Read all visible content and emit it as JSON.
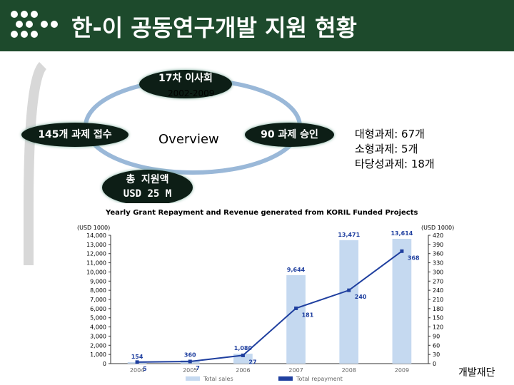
{
  "header": {
    "title": "한-이 공동연구개발 지원 현황"
  },
  "diagram": {
    "board": "17차 이사회",
    "period": "2002-2009",
    "received": "145개 과제 접수",
    "center": "Overview",
    "approved": "90 과제 승인",
    "total_label": "총 지원액",
    "total_value": "USD 25 M"
  },
  "summary": [
    "대형과제: 67개",
    "소형과제: 5개",
    "타당성과제: 18개"
  ],
  "footer": "개발재단",
  "chart_data": {
    "type": "bar_line",
    "title": "Yearly Grant Repayment and Revenue generated from KORIL Funded Projects",
    "ylabel": "(USD 1000)",
    "y2label": "(USD 1000)",
    "categories": [
      "2004",
      "2005",
      "2006",
      "2007",
      "2008",
      "2009"
    ],
    "series": [
      {
        "name": "Total sales",
        "color": "#c5d9f0",
        "type": "bar",
        "values": [
          154,
          360,
          1080,
          9644,
          13471,
          13614
        ],
        "value_labels": [
          "154",
          "360",
          "1,080",
          "9,644",
          "13,471",
          "13,614"
        ]
      },
      {
        "name": "Total repayment",
        "color": "#1f3f9f",
        "type": "line",
        "axis": "y2",
        "values": [
          5,
          7,
          27,
          181,
          240,
          368
        ]
      }
    ],
    "ylim": [
      0,
      14000
    ],
    "yticks": [
      0,
      {
        "value": 1000,
        "label": "1,000"
      },
      {
        "value": 2000,
        "label": "2,000"
      },
      {
        "value": 3000,
        "label": "3,000"
      },
      {
        "value": 4000,
        "label": "4,000"
      },
      {
        "value": 5000,
        "label": "5,000"
      },
      {
        "value": 6000,
        "label": "6,000"
      },
      {
        "value": 7000,
        "label": "7,000"
      },
      {
        "value": 8000,
        "label": "8,000"
      },
      {
        "value": 9000,
        "label": "9,000"
      },
      {
        "value": 10000,
        "label": "10,000"
      },
      {
        "value": 11000,
        "label": "11,000"
      },
      {
        "value": 12000,
        "label": "12,000"
      },
      {
        "value": 13000,
        "label": "13,000"
      },
      {
        "value": 14000,
        "label": "14,000"
      }
    ],
    "y2lim": [
      0,
      420
    ],
    "y2ticks": [
      0,
      30,
      60,
      90,
      120,
      150,
      180,
      210,
      240,
      270,
      300,
      330,
      360,
      390,
      420
    ]
  }
}
